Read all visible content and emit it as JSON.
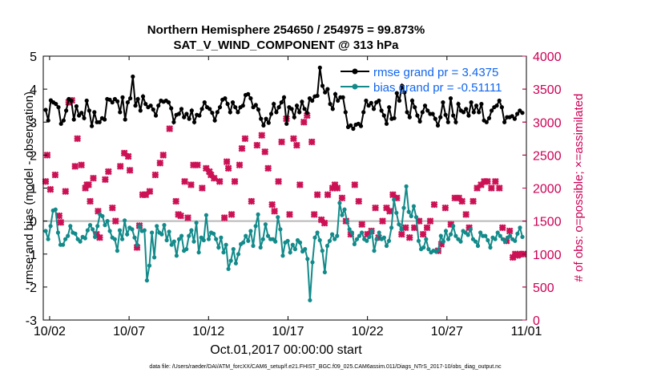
{
  "chart_data": {
    "type": "line",
    "title": "Northern Hemisphere 254650 / 254975 = 99.873%",
    "subtitle": "SAT_V_WIND_COMPONENT @ 313 hPa",
    "xlabel": "Oct.01,2017 00:00:00 start",
    "ylabel": "rmse and bias (model - observation)",
    "y2label": "# of obs: o=possible; ×=assimilated",
    "ylim": [
      -3,
      5
    ],
    "y2lim": [
      0,
      4000
    ],
    "xlim": [
      0.6,
      31.0
    ],
    "y_ticks": [
      "-3",
      "-2",
      "-1",
      "0",
      "1",
      "2",
      "3",
      "4",
      "5"
    ],
    "y2_ticks": [
      "0",
      "500",
      "1000",
      "1500",
      "2000",
      "2500",
      "3000",
      "3500",
      "4000"
    ],
    "x_ticks": [
      {
        "x": 1,
        "label": "10/02"
      },
      {
        "x": 6,
        "label": "10/07"
      },
      {
        "x": 11,
        "label": "10/12"
      },
      {
        "x": 16,
        "label": "10/17"
      },
      {
        "x": 21,
        "label": "10/22"
      },
      {
        "x": 26,
        "label": "10/27"
      },
      {
        "x": 31,
        "label": "11/01"
      }
    ],
    "legend": {
      "placement": "top-right"
    },
    "footer": "data file: /Users/raeder/DAI/ATM_forcXX/CAM6_setup/f.e21.FHIST_BGC.f09_025.CAM6assim.011/Diags_NTrS_2017-10/obs_diag_output.nc",
    "series": [
      {
        "name": "rmse grand pr = 3.4375",
        "color": "#000000",
        "marker": "circle",
        "values": [
          3.37,
          3.05,
          3.66,
          3.6,
          3.55,
          3.45,
          2.95,
          3.05,
          3.35,
          3.7,
          3.65,
          3.08,
          3.48,
          3.2,
          3.28,
          3.12,
          3.65,
          3.35,
          2.88,
          3.3,
          3.0,
          3.0,
          3.12,
          3.08,
          3.7,
          3.68,
          3.6,
          3.7,
          3.63,
          3.3,
          3.75,
          3.08,
          3.6,
          3.72,
          4.38,
          3.5,
          3.7,
          3.35,
          3.78,
          3.55,
          3.45,
          3.5,
          3.38,
          3.2,
          3.5,
          3.65,
          3.62,
          3.65,
          3.6,
          3.42,
          3.0,
          3.22,
          3.25,
          3.4,
          3.15,
          3.25,
          3.1,
          3.35,
          3.0,
          3.22,
          3.2,
          3.4,
          3.6,
          3.45,
          3.4,
          3.28,
          3.05,
          3.3,
          3.45,
          3.68,
          3.72,
          3.55,
          3.3,
          3.6,
          3.45,
          3.3,
          3.45,
          3.5,
          3.82,
          3.85,
          3.72,
          3.45,
          3.52,
          3.38,
          3.1,
          2.9,
          3.1,
          2.98,
          3.25,
          3.55,
          3.3,
          3.45,
          3.6,
          3.75,
          2.95,
          3.45,
          3.4,
          3.15,
          3.5,
          3.3,
          3.62,
          3.4,
          3.28,
          3.72,
          3.65,
          3.78,
          3.8,
          4.65,
          4.1,
          3.9,
          4.0,
          3.55,
          3.4,
          3.85,
          3.65,
          3.75,
          3.75,
          3.3,
          2.85,
          2.9,
          2.8,
          2.92,
          2.95,
          2.88,
          3.3,
          3.65,
          3.5,
          3.58,
          3.4,
          3.6,
          3.65,
          3.35,
          3.2,
          2.95,
          3.45,
          3.1,
          3.12,
          3.88,
          3.65,
          4.1,
          3.9,
          3.3,
          3.15,
          3.65,
          3.45,
          3.2,
          3.02,
          3.3,
          3.5,
          3.35,
          3.25,
          3.25,
          3.1,
          2.9,
          3.15,
          3.6,
          3.22,
          3.0,
          3.72,
          3.2,
          3.0,
          3.55,
          3.35,
          3.3,
          3.4,
          3.2,
          3.6,
          3.3,
          3.5,
          3.3,
          3.55,
          3.05,
          3.0,
          3.12,
          3.35,
          3.45,
          3.5,
          3.65,
          3.45,
          3.0,
          3.15,
          3.15,
          3.18,
          3.1,
          3.25,
          3.35,
          3.28
        ]
      },
      {
        "name": "bias grand pr = -0.51111",
        "color": "#138a8a",
        "marker": "circle",
        "values": [
          -0.3,
          -0.55,
          -0.15,
          0.32,
          0.35,
          -0.35,
          -0.72,
          -0.72,
          -0.55,
          -0.45,
          -0.15,
          -0.35,
          -0.38,
          -0.55,
          -0.62,
          -0.48,
          -0.52,
          -0.28,
          -0.12,
          -0.25,
          -0.48,
          -0.15,
          0.2,
          0.15,
          -0.12,
          0.0,
          -0.3,
          -0.5,
          -0.55,
          -0.9,
          -0.28,
          -0.55,
          0.02,
          -0.4,
          -0.2,
          -0.25,
          -0.5,
          -0.72,
          -0.15,
          -0.3,
          -0.28,
          -1.8,
          -1.35,
          -0.35,
          -1.1,
          -0.15,
          -0.35,
          -0.4,
          -0.12,
          -0.58,
          -0.32,
          -0.72,
          -0.62,
          -1.05,
          -0.55,
          -0.45,
          -0.9,
          -0.85,
          -0.45,
          -0.28,
          -0.62,
          -0.05,
          -0.95,
          -0.5,
          -0.58,
          0.18,
          -0.55,
          -0.35,
          -0.38,
          -0.55,
          -0.8,
          -0.5,
          -0.95,
          -0.72,
          -1.45,
          -1.2,
          -0.85,
          -1.28,
          -1.0,
          -0.7,
          -0.65,
          -0.45,
          -0.6,
          -0.3,
          -0.75,
          -0.15,
          0.2,
          -0.8,
          -0.55,
          -0.1,
          -0.45,
          -0.55,
          -0.55,
          -0.62,
          0.12,
          -0.25,
          -1.05,
          -0.65,
          -0.6,
          -0.95,
          -0.72,
          -0.85,
          -0.58,
          -0.65,
          -0.92,
          -0.85,
          -1.15,
          -2.4,
          -1.25,
          -0.5,
          -0.35,
          -0.58,
          -0.9,
          -1.55,
          -0.75,
          -0.6,
          -0.4,
          -0.55,
          -0.45,
          0.55,
          0.18,
          0.35,
          0.0,
          -0.25,
          -0.35,
          -0.7,
          -0.55,
          -0.45,
          -0.35,
          -0.55,
          -0.6,
          -0.48,
          -0.3,
          -0.9,
          -0.55,
          -0.35,
          -0.55,
          -0.5,
          -0.75,
          -0.6,
          -0.2,
          0.65,
          0.25,
          -0.1,
          -0.25,
          0.4,
          1.05,
          0.28,
          0.15,
          0.45,
          0.12,
          -0.6,
          -0.85,
          -0.8,
          -0.55,
          -0.85,
          -0.95,
          -0.9,
          -0.92,
          -0.88,
          -0.45,
          -0.62,
          -0.3,
          -0.55,
          -0.4,
          -0.15,
          -0.45,
          -0.55,
          -0.62,
          -0.3,
          -0.35,
          -0.42,
          -0.25,
          -0.55,
          -0.62,
          -0.75,
          -0.35,
          -0.45,
          -0.45,
          -0.58,
          -0.8,
          -0.5,
          -0.55,
          -0.35,
          -0.45,
          -0.55,
          -0.62,
          -0.5,
          -0.45,
          -0.55,
          -0.6,
          -0.38,
          -0.2,
          -0.48
        ]
      },
      {
        "name": "# of obs assimilated",
        "color": "#cc1155",
        "marker": "x",
        "points": [
          [
            0.75,
            2100
          ],
          [
            0.85,
            2500
          ],
          [
            1.05,
            1980
          ],
          [
            1.35,
            2200
          ],
          [
            1.6,
            1580
          ],
          [
            1.7,
            1480
          ],
          [
            2.0,
            1950
          ],
          [
            2.2,
            3300
          ],
          [
            2.4,
            3330
          ],
          [
            2.6,
            2330
          ],
          [
            2.75,
            2750
          ],
          [
            3.0,
            2350
          ],
          [
            3.25,
            2000
          ],
          [
            3.35,
            2050
          ],
          [
            3.45,
            2050
          ],
          [
            3.55,
            1800
          ],
          [
            3.75,
            2150
          ],
          [
            3.95,
            1300
          ],
          [
            4.05,
            1650
          ],
          [
            4.15,
            1250
          ],
          [
            4.5,
            2130
          ],
          [
            4.7,
            2250
          ],
          [
            4.95,
            1700
          ],
          [
            5.15,
            1500
          ],
          [
            5.45,
            2330
          ],
          [
            5.7,
            2530
          ],
          [
            5.95,
            2480
          ],
          [
            6.05,
            2270
          ],
          [
            6.5,
            1100
          ],
          [
            6.65,
            1430
          ],
          [
            6.85,
            1900
          ],
          [
            7.05,
            1900
          ],
          [
            7.3,
            1950
          ],
          [
            7.65,
            2200
          ],
          [
            7.95,
            2380
          ],
          [
            8.15,
            2500
          ],
          [
            8.55,
            2900
          ],
          [
            8.95,
            1800
          ],
          [
            9.1,
            1600
          ],
          [
            9.25,
            1580
          ],
          [
            9.5,
            2100
          ],
          [
            9.7,
            1550
          ],
          [
            9.9,
            2050
          ],
          [
            10.05,
            2350
          ],
          [
            10.3,
            2350
          ],
          [
            10.6,
            2000
          ],
          [
            10.85,
            2300
          ],
          [
            11.05,
            2250
          ],
          [
            11.15,
            2200
          ],
          [
            11.35,
            2150
          ],
          [
            11.7,
            2100
          ],
          [
            12.0,
            1550
          ],
          [
            12.15,
            2400
          ],
          [
            12.25,
            2300
          ],
          [
            12.45,
            1600
          ],
          [
            12.65,
            2100
          ],
          [
            12.95,
            2350
          ],
          [
            13.1,
            2600
          ],
          [
            13.3,
            2750
          ],
          [
            13.7,
            1800
          ],
          [
            14.05,
            2650
          ],
          [
            14.35,
            2800
          ],
          [
            14.55,
            2550
          ],
          [
            14.75,
            2300
          ],
          [
            15.0,
            1750
          ],
          [
            15.15,
            1650
          ],
          [
            15.4,
            2100
          ],
          [
            15.6,
            2700
          ],
          [
            15.9,
            3050
          ],
          [
            16.1,
            1600
          ],
          [
            16.35,
            2750
          ],
          [
            16.55,
            2650
          ],
          [
            16.75,
            2050
          ],
          [
            17.0,
            3000
          ],
          [
            17.2,
            3100
          ],
          [
            17.5,
            2700
          ],
          [
            17.65,
            1600
          ],
          [
            17.85,
            1900
          ],
          [
            18.1,
            1520
          ],
          [
            18.3,
            1470
          ],
          [
            18.5,
            1900
          ],
          [
            18.8,
            2000
          ],
          [
            18.95,
            2050
          ],
          [
            19.1,
            2000
          ],
          [
            19.4,
            1850
          ],
          [
            19.65,
            1500
          ],
          [
            19.95,
            1300
          ],
          [
            20.2,
            2050
          ],
          [
            20.45,
            1800
          ],
          [
            20.65,
            1450
          ],
          [
            21.0,
            1300
          ],
          [
            21.25,
            1350
          ],
          [
            21.5,
            1700
          ],
          [
            21.7,
            1250
          ],
          [
            21.95,
            1500
          ],
          [
            22.2,
            1700
          ],
          [
            22.4,
            1650
          ],
          [
            22.6,
            1900
          ],
          [
            22.85,
            1850
          ],
          [
            23.15,
            1300
          ],
          [
            23.4,
            1400
          ],
          [
            23.65,
            1250
          ],
          [
            23.95,
            1400
          ],
          [
            24.25,
            1500
          ],
          [
            24.5,
            1300
          ],
          [
            24.75,
            1400
          ],
          [
            24.95,
            1500
          ],
          [
            25.2,
            1750
          ],
          [
            25.45,
            1050
          ],
          [
            25.65,
            1150
          ],
          [
            25.9,
            1700
          ],
          [
            26.25,
            1450
          ],
          [
            26.5,
            1850
          ],
          [
            26.75,
            1850
          ],
          [
            26.95,
            1800
          ],
          [
            27.2,
            1600
          ],
          [
            27.4,
            1400
          ],
          [
            27.65,
            1800
          ],
          [
            27.9,
            2000
          ],
          [
            28.15,
            2050
          ],
          [
            28.35,
            2100
          ],
          [
            28.55,
            2100
          ],
          [
            28.8,
            2000
          ],
          [
            29.05,
            2100
          ],
          [
            29.3,
            2000
          ],
          [
            29.5,
            1400
          ],
          [
            29.75,
            1200
          ],
          [
            29.95,
            1350
          ],
          [
            30.15,
            950
          ],
          [
            30.3,
            1000
          ],
          [
            30.45,
            980
          ],
          [
            30.6,
            1000
          ],
          [
            30.8,
            1000
          ]
        ]
      }
    ]
  }
}
